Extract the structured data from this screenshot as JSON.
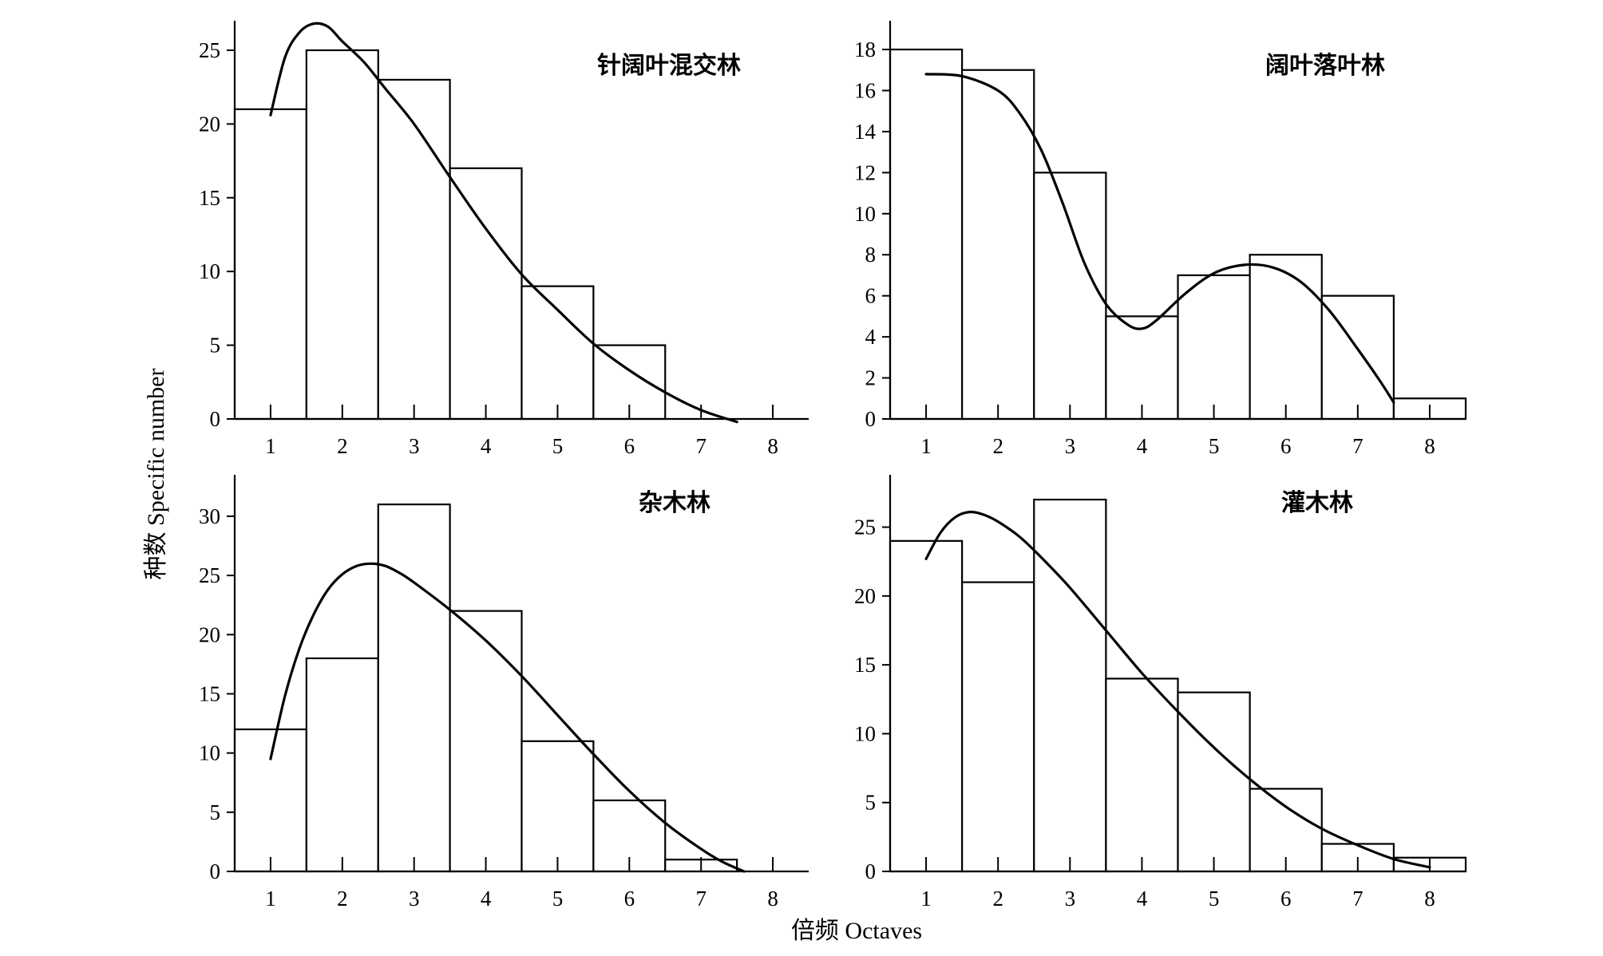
{
  "axis_titles": {
    "x": "倍频 Octaves",
    "y": "种数 Specific number"
  },
  "chart_data": [
    {
      "type": "bar",
      "title": "针阔叶混交林",
      "categories": [
        "1",
        "2",
        "3",
        "4",
        "5",
        "6",
        "7",
        "8"
      ],
      "values": [
        21,
        25,
        23,
        17,
        9,
        5,
        0,
        0
      ],
      "yticks": [
        0,
        5,
        10,
        15,
        20,
        25
      ],
      "ylim": [
        0,
        27
      ],
      "xlim": [
        0.5,
        8.5
      ],
      "bar_outline": "#000000",
      "bar_fill": "#ffffff",
      "curve": {
        "x": [
          1.0,
          1.2,
          1.4,
          1.6,
          1.8,
          2.0,
          2.3,
          2.6,
          3.0,
          3.5,
          4.0,
          4.5,
          5.0,
          5.5,
          6.0,
          6.5,
          7.0,
          7.5
        ],
        "y": [
          20.6,
          24.5,
          26.2,
          26.8,
          26.6,
          25.6,
          24.2,
          22.4,
          20.0,
          16.4,
          12.9,
          9.8,
          7.4,
          5.1,
          3.3,
          1.8,
          0.6,
          -0.2
        ]
      }
    },
    {
      "type": "bar",
      "title": "阔叶落叶林",
      "categories": [
        "1",
        "2",
        "3",
        "4",
        "5",
        "6",
        "7",
        "8"
      ],
      "values": [
        18,
        17,
        12,
        5,
        7,
        8,
        6,
        1
      ],
      "yticks": [
        0,
        2,
        4,
        6,
        8,
        10,
        12,
        14,
        16,
        18
      ],
      "ylim": [
        0,
        19.4
      ],
      "xlim": [
        0.5,
        8.5
      ],
      "bar_outline": "#000000",
      "bar_fill": "#ffffff",
      "curve": {
        "x": [
          1.0,
          1.5,
          2.0,
          2.3,
          2.6,
          2.9,
          3.2,
          3.5,
          3.8,
          4.0,
          4.2,
          4.6,
          5.0,
          5.4,
          5.8,
          6.2,
          6.6,
          7.0,
          7.3,
          7.5
        ],
        "y": [
          16.8,
          16.7,
          16.0,
          14.9,
          13.1,
          10.5,
          7.6,
          5.6,
          4.6,
          4.4,
          4.8,
          6.1,
          7.1,
          7.5,
          7.4,
          6.7,
          5.3,
          3.4,
          1.9,
          0.8
        ]
      }
    },
    {
      "type": "bar",
      "title": "杂木林",
      "categories": [
        "1",
        "2",
        "3",
        "4",
        "5",
        "6",
        "7",
        "8"
      ],
      "values": [
        12,
        18,
        31,
        22,
        11,
        6,
        1,
        0
      ],
      "yticks": [
        0,
        5,
        10,
        15,
        20,
        25,
        30
      ],
      "ylim": [
        0,
        33.5
      ],
      "xlim": [
        0.5,
        8.5
      ],
      "bar_outline": "#000000",
      "bar_fill": "#ffffff",
      "curve": {
        "x": [
          1.0,
          1.2,
          1.4,
          1.6,
          1.8,
          2.0,
          2.2,
          2.4,
          2.6,
          2.8,
          3.0,
          3.5,
          4.0,
          4.5,
          5.0,
          5.5,
          6.0,
          6.5,
          7.0,
          7.3,
          7.6
        ],
        "y": [
          9.5,
          14.8,
          18.8,
          21.7,
          23.8,
          25.1,
          25.8,
          26.0,
          25.8,
          25.2,
          24.4,
          22.1,
          19.5,
          16.5,
          13.2,
          9.9,
          6.8,
          4.1,
          1.9,
          0.8,
          0.0
        ]
      }
    },
    {
      "type": "bar",
      "title": "灌木林",
      "categories": [
        "1",
        "2",
        "3",
        "4",
        "5",
        "6",
        "7",
        "8"
      ],
      "values": [
        24,
        21,
        27,
        14,
        13,
        6,
        2,
        1
      ],
      "yticks": [
        0,
        5,
        10,
        15,
        20,
        25
      ],
      "ylim": [
        0,
        28.8
      ],
      "xlim": [
        0.5,
        8.5
      ],
      "bar_outline": "#000000",
      "bar_fill": "#ffffff",
      "curve": {
        "x": [
          1.0,
          1.2,
          1.4,
          1.6,
          1.8,
          2.0,
          2.3,
          2.6,
          3.0,
          3.5,
          4.0,
          4.5,
          5.0,
          5.5,
          6.0,
          6.5,
          7.0,
          7.5,
          8.0
        ],
        "y": [
          22.7,
          24.6,
          25.7,
          26.1,
          25.9,
          25.4,
          24.3,
          22.8,
          20.6,
          17.5,
          14.4,
          11.6,
          9.0,
          6.7,
          4.7,
          3.1,
          1.9,
          0.9,
          0.3
        ]
      }
    }
  ]
}
